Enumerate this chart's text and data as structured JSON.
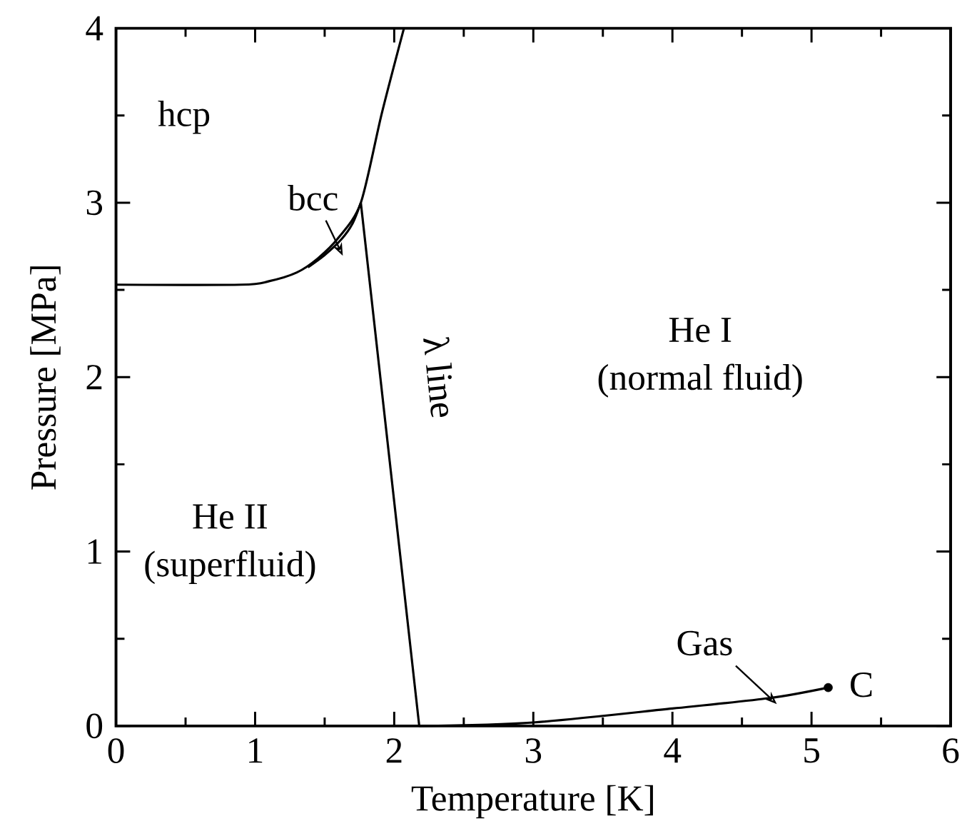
{
  "chart_data": {
    "type": "line",
    "xlabel": "Temperature [K]",
    "ylabel": "Pressure [MPa]",
    "xlim": [
      0,
      6
    ],
    "ylim": [
      0,
      4
    ],
    "xticks": [
      0,
      1,
      2,
      3,
      4,
      5,
      6
    ],
    "yticks": [
      0,
      1,
      2,
      3,
      4
    ],
    "line_style": "solid",
    "grid": false,
    "series": [
      {
        "color": "#000000",
        "x": [
          0,
          0.9,
          1.1,
          1.3,
          1.45,
          1.6,
          1.76,
          1.91,
          2.07
        ],
        "values": [
          2.53,
          2.53,
          2.55,
          2.6,
          2.68,
          2.8,
          3.0,
          3.51,
          4.0
        ]
      },
      {
        "color": "#000000",
        "x": [
          1.38,
          1.5,
          1.62,
          1.7,
          1.76
        ],
        "values": [
          2.63,
          2.7,
          2.79,
          2.88,
          3.0
        ]
      },
      {
        "color": "#000000",
        "x": [
          1.76,
          2.18
        ],
        "values": [
          3.0,
          0
        ]
      },
      {
        "color": "#000000",
        "x": [
          2.18,
          3.0,
          4.0,
          4.7,
          5.12
        ],
        "values": [
          0,
          0.02,
          0.1,
          0.16,
          0.22
        ]
      },
      {
        "type": "scatter",
        "marker": "circle",
        "color": "#000000",
        "x": [
          5.12
        ],
        "values": [
          0.22
        ]
      }
    ],
    "annotations": [
      "hcp",
      {
        "text": "bcc",
        "x": 1.6,
        "y": 2.72
      },
      "λ line",
      "He I",
      "(normal fluid)",
      "He II",
      "(superfluid)",
      {
        "text": "Gas",
        "x": 4.72,
        "y": 0.15
      },
      {
        "text": "C",
        "x": 5.12,
        "y": 0.22
      }
    ]
  }
}
